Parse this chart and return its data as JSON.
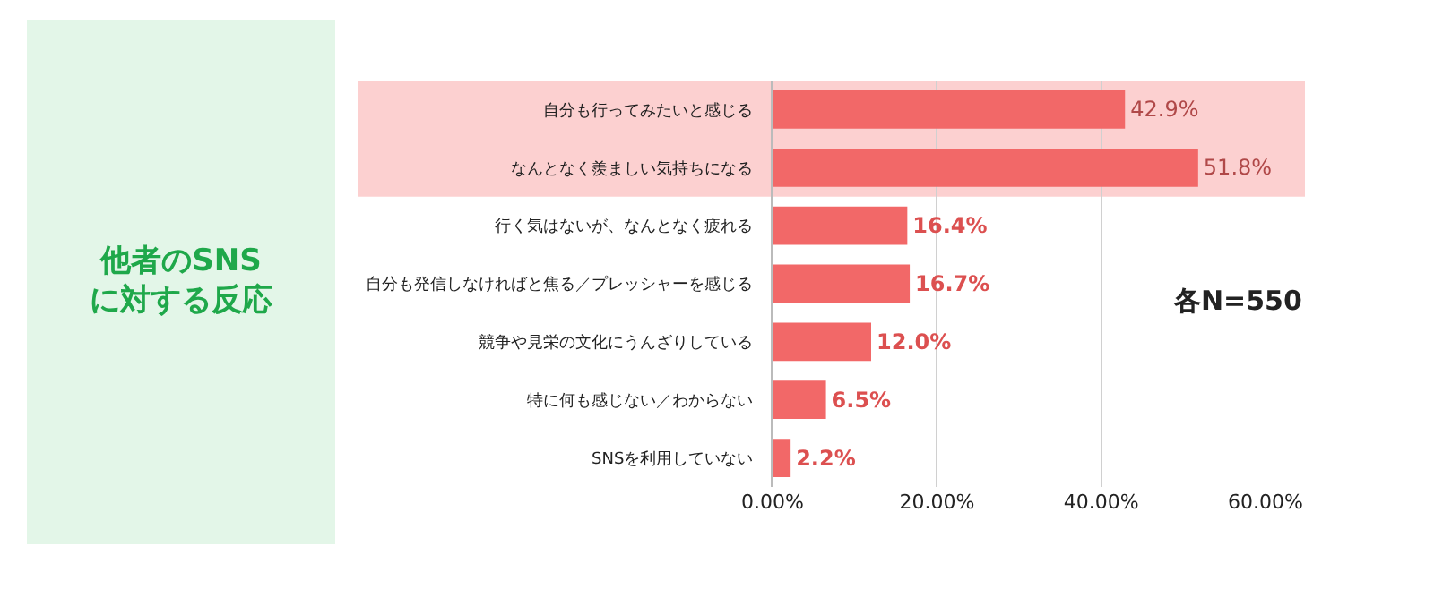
{
  "chart_data": {
    "type": "bar",
    "orientation": "horizontal",
    "title": "他者のSNSに対する反応",
    "categories": [
      "自分も行ってみたいと感じる",
      "なんとなく羨ましい気持ちになる",
      "行く気はないが、なんとなく疲れる",
      "自分も発信しなければと焦る／プレッシャーを感じる",
      "競争や見栄の文化にうんざりしている",
      "特に何も感じない／わからない",
      "SNSを利用していない"
    ],
    "values": [
      42.9,
      51.8,
      16.4,
      16.7,
      12.0,
      6.5,
      2.2
    ],
    "value_labels": [
      "42.9%",
      "51.8%",
      "16.4%",
      "16.7%",
      "12.0%",
      "6.5%",
      "2.2%"
    ],
    "color": "#f26868",
    "xlim": [
      0,
      60
    ],
    "xticks": [
      {
        "value": 0,
        "label": "0.00%"
      },
      {
        "value": 20,
        "label": "20.00%"
      },
      {
        "value": 40,
        "label": "40.00%"
      },
      {
        "value": 60,
        "label": "60.00%"
      }
    ],
    "grid": "x",
    "bands": [
      {
        "axis": "y",
        "from": "自分も行ってみたいと感じる",
        "to": "なんとなく羨ましい気持ちになる",
        "color": "#fcd0d0"
      }
    ],
    "annotations": [
      "各N=550"
    ]
  }
}
